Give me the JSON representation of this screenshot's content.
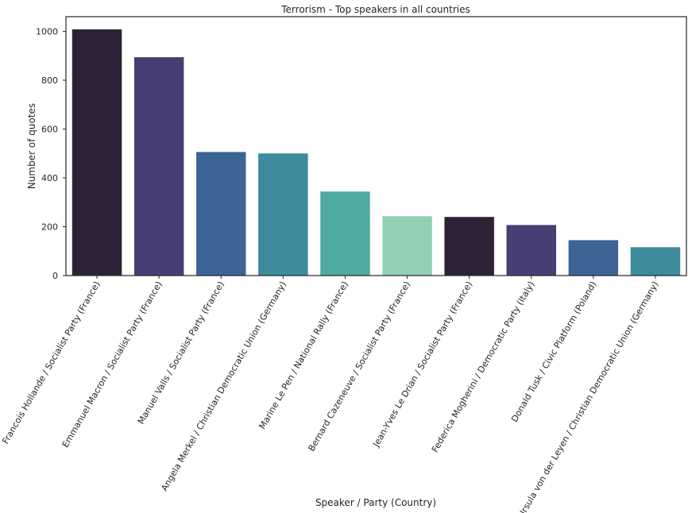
{
  "chart_data": {
    "type": "bar",
    "title": "Terrorism - Top speakers in all countries",
    "xlabel": "Speaker / Party (Country)",
    "ylabel": "Number of quotes",
    "ylim": [
      0,
      1060
    ],
    "yticks": [
      0,
      200,
      400,
      600,
      800,
      1000
    ],
    "grid": false,
    "categories": [
      "Francois Hollande / Socialist Party (France)",
      "Emmanuel Macron / Socialist Party (France)",
      "Manuel Valls / Socialist Party (France)",
      "Angela Merkel / Christian Democratic Union (Germany)",
      "Marine Le Pen / National Rally (France)",
      "Bernard Cazeneuve / Socialist Party (France)",
      "Jean-Yves Le Drian / Socialist Party (France)",
      "Federica Mogherini / Democratic Party (Italy)",
      "Donald Tusk / Civic Platform (Poland)",
      "Ursula von der Leyen / Christian Democratic Union (Germany)"
    ],
    "values": [
      1008,
      894,
      506,
      500,
      344,
      243,
      240,
      207,
      145,
      116
    ],
    "colors": [
      "#2e2236",
      "#463f74",
      "#3c6595",
      "#3d8b9d",
      "#4fab9f",
      "#93d0b3",
      "#2e2236",
      "#463f74",
      "#3c6595",
      "#3d8b9d"
    ]
  }
}
